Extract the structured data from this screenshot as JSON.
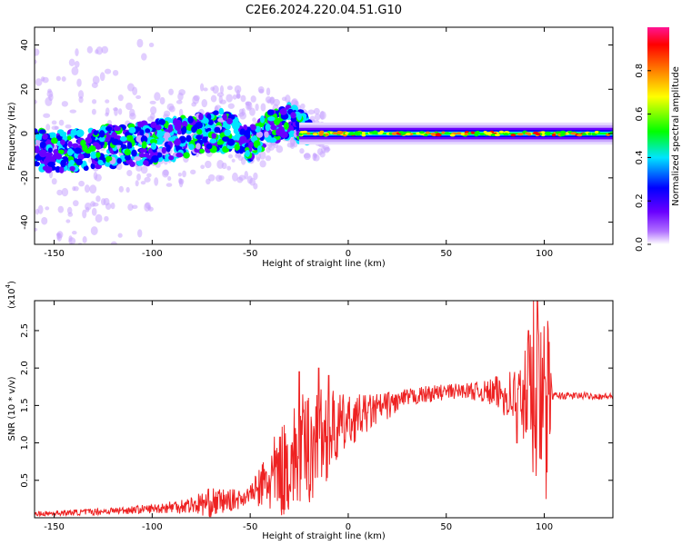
{
  "title": "C2E6.2024.220.04.51.G10",
  "chart_data": [
    {
      "type": "heatmap",
      "xlabel": "Height of straight line (km)",
      "ylabel": "Frequency (Hz)",
      "xlim": [
        -160,
        135
      ],
      "ylim": [
        -50,
        48
      ],
      "xticks": [
        -150,
        -100,
        -50,
        0,
        50,
        100
      ],
      "yticks": [
        -40,
        -20,
        0,
        20,
        40
      ],
      "colorbar": {
        "label": "Normalized spectral amplitude",
        "range": [
          0,
          1
        ],
        "ticks": [
          "0.0",
          "0.2",
          "0.4",
          "0.6",
          "0.8"
        ],
        "colors": [
          "#ffffff",
          "#6a00ff",
          "#0000ff",
          "#00e5ff",
          "#00ff00",
          "#ffff00",
          "#ff8000",
          "#ff0000",
          "#ff1493"
        ]
      },
      "ridge": {
        "x": [
          -160,
          -140,
          -120,
          -100,
          -80,
          -60,
          -50,
          -40,
          -30,
          -20,
          0,
          20,
          60,
          80,
          100,
          135
        ],
        "frequency": [
          -8,
          -8,
          -6,
          -4,
          -1,
          2,
          -5,
          3,
          6,
          1,
          -2,
          0,
          0,
          0,
          0,
          0
        ]
      }
    },
    {
      "type": "line",
      "xlabel": "Height of straight line (km)",
      "ylabel": "SNR (10 * v/v)",
      "yscale_label": "(x10",
      "yscale_exp": "4",
      "yscale_close": ")",
      "xlim": [
        -160,
        135
      ],
      "ylim": [
        0,
        2.9
      ],
      "xticks": [
        -150,
        -100,
        -50,
        0,
        50,
        100
      ],
      "yticks": [
        "0.5",
        "1.0",
        "1.5",
        "2.0",
        "2.5"
      ],
      "color": "#ee2222",
      "trend": {
        "x": [
          -160,
          -130,
          -100,
          -70,
          -55,
          -45,
          -35,
          -25,
          -15,
          -5,
          5,
          20,
          30,
          40,
          50,
          60,
          70,
          80,
          90,
          95,
          100,
          105,
          120,
          135
        ],
        "y": [
          0.05,
          0.08,
          0.12,
          0.2,
          0.25,
          0.4,
          0.6,
          0.85,
          1.05,
          1.2,
          1.35,
          1.5,
          1.6,
          1.65,
          1.68,
          1.7,
          1.68,
          1.65,
          1.6,
          1.6,
          1.62,
          1.63,
          1.63,
          1.62
        ]
      },
      "spread": {
        "x": [
          -160,
          -100,
          -80,
          -70,
          -50,
          -40,
          -30,
          -20,
          -10,
          0,
          10,
          30,
          60,
          70,
          80,
          88,
          92,
          96,
          99,
          102,
          104,
          135
        ],
        "amp": [
          0.03,
          0.06,
          0.12,
          0.2,
          0.1,
          0.5,
          0.7,
          0.8,
          0.6,
          0.35,
          0.25,
          0.12,
          0.1,
          0.15,
          0.3,
          0.5,
          0.9,
          1.2,
          0.9,
          1.1,
          0.05,
          0.04
        ]
      },
      "peaks": [
        {
          "x": -25,
          "y": 1.95
        },
        {
          "x": -15,
          "y": 2.0
        },
        {
          "x": -10,
          "y": 1.9
        },
        {
          "x": 92,
          "y": 2.5
        },
        {
          "x": 94.5,
          "y": 2.9
        },
        {
          "x": 96.5,
          "y": 2.9
        },
        {
          "x": 101,
          "y": 0.25
        },
        {
          "x": 86,
          "y": 1.0
        }
      ]
    }
  ]
}
